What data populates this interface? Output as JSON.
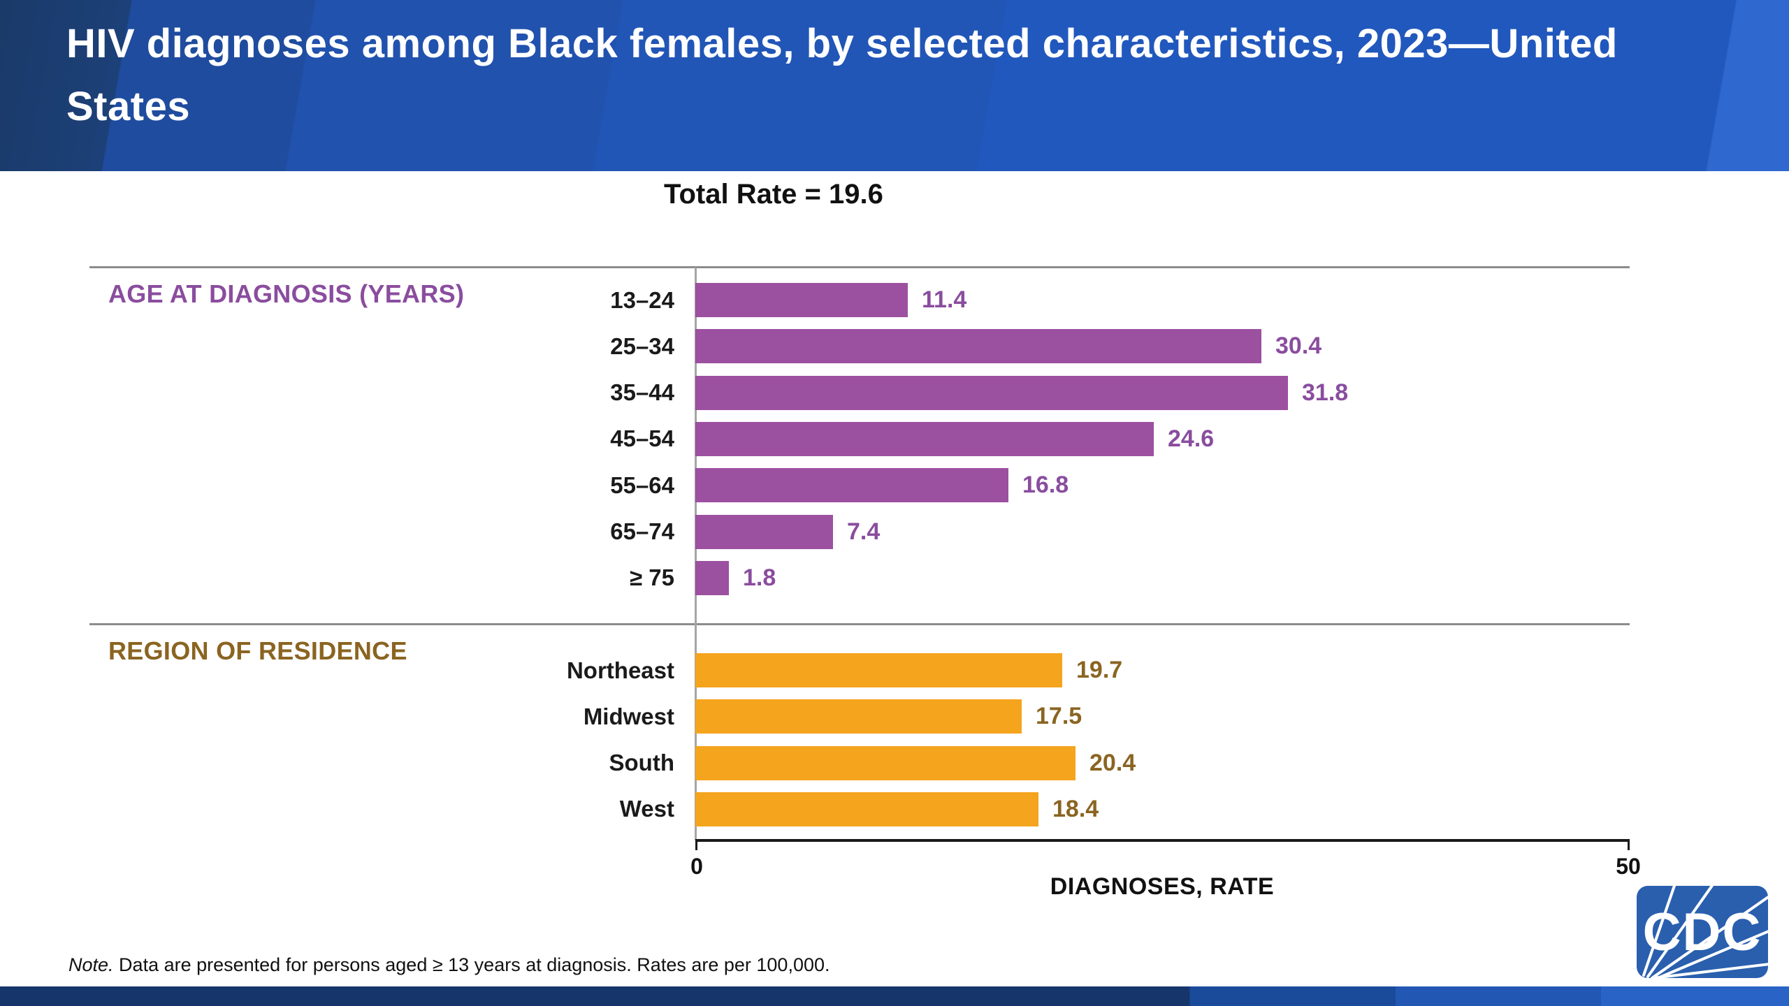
{
  "header": {
    "title": "HIV diagnoses among Black females, by selected characteristics, 2023—United States"
  },
  "chart_data": {
    "type": "bar",
    "orientation": "horizontal",
    "title": "HIV diagnoses among Black females, by selected characteristics, 2023—United States",
    "annotation": "Total Rate = 19.6",
    "total_rate": 19.6,
    "xlabel": "DIAGNOSES, RATE",
    "xlim": [
      0,
      50
    ],
    "x_tick_labels": [
      "0",
      "50"
    ],
    "grid": false,
    "legend": "none",
    "groups": [
      {
        "label": "AGE AT DIAGNOSIS (YEARS)",
        "header_color": "#8a4d9e",
        "bar_color": "#9c50a0",
        "value_color": "#8a4d9e",
        "categories": [
          "13–24",
          "25–34",
          "35–44",
          "45–54",
          "55–64",
          "65–74",
          "≥ 75"
        ],
        "values": [
          11.4,
          30.4,
          31.8,
          24.6,
          16.8,
          7.4,
          1.8
        ]
      },
      {
        "label": "REGION OF RESIDENCE",
        "header_color": "#8a6421",
        "bar_color": "#f5a41e",
        "value_color": "#8a6421",
        "categories": [
          "Northeast",
          "Midwest",
          "South",
          "West"
        ],
        "values": [
          19.7,
          17.5,
          20.4,
          18.4
        ]
      }
    ]
  },
  "note": {
    "prefix": "Note.",
    "body": " Data are presented for persons aged ≥ 13 years at diagnosis. Rates are per 100,000."
  },
  "logo": {
    "label": "CDC"
  }
}
